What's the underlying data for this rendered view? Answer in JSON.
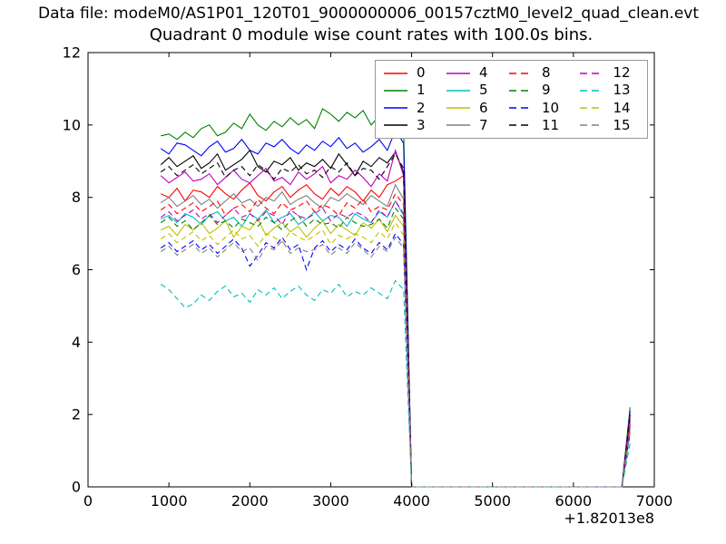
{
  "header": {
    "data_file": "Data file: modeM0/AS1P01_120T01_9000000006_00157cztM0_level2_quad_clean.evt"
  },
  "chart_data": {
    "type": "line",
    "title": "Quadrant 0 module wise count rates with 100.0s bins.",
    "xlabel": "",
    "ylabel": "",
    "xlim": [
      0,
      7000
    ],
    "ylim": [
      0,
      12
    ],
    "x_ticks": [
      0,
      1000,
      2000,
      3000,
      4000,
      5000,
      6000,
      7000
    ],
    "y_ticks": [
      0,
      2,
      4,
      6,
      8,
      10,
      12
    ],
    "x_offset_label": "+1.82013e8",
    "grid": false,
    "legend": {
      "position": "upper right inside",
      "columns": 4,
      "border_color": "#999999"
    },
    "bin_seconds": 100.0,
    "x_start": 900,
    "x_step": 100,
    "zero_from": 4000,
    "zero_to": 6600,
    "tail_x": 6700,
    "series": [
      {
        "name": "0",
        "color": "#ff0000",
        "dashed": false,
        "tail": 1.85,
        "values": [
          8.1,
          8.0,
          8.25,
          7.9,
          8.2,
          8.15,
          8.0,
          8.3,
          8.1,
          7.95,
          8.2,
          8.4,
          8.05,
          7.9,
          8.15,
          8.3,
          8.0,
          8.2,
          8.35,
          8.1,
          7.95,
          8.25,
          8.05,
          8.3,
          8.15,
          7.9,
          8.2,
          8.0,
          8.35,
          8.45,
          8.6
        ]
      },
      {
        "name": "1",
        "color": "#008000",
        "dashed": false,
        "tail": 2.2,
        "values": [
          9.7,
          9.75,
          9.6,
          9.8,
          9.65,
          9.9,
          10.0,
          9.7,
          9.8,
          10.05,
          9.9,
          10.3,
          10.0,
          9.85,
          10.1,
          9.95,
          10.2,
          10.0,
          10.15,
          9.9,
          10.45,
          10.3,
          10.1,
          10.35,
          10.2,
          10.4,
          10.0,
          10.25,
          10.45,
          9.7,
          9.9
        ]
      },
      {
        "name": "2",
        "color": "#0000ff",
        "dashed": false,
        "tail": 2.1,
        "values": [
          9.35,
          9.2,
          9.5,
          9.45,
          9.3,
          9.15,
          9.4,
          9.55,
          9.25,
          9.35,
          9.6,
          9.3,
          9.2,
          9.5,
          9.4,
          9.6,
          9.35,
          9.2,
          9.45,
          9.3,
          9.55,
          9.4,
          9.65,
          9.35,
          9.5,
          9.25,
          9.4,
          9.6,
          9.3,
          9.85,
          9.5
        ]
      },
      {
        "name": "3",
        "color": "#000000",
        "dashed": false,
        "tail": 2.0,
        "values": [
          8.9,
          9.1,
          8.85,
          9.0,
          9.15,
          8.8,
          8.95,
          9.2,
          8.75,
          8.9,
          9.05,
          9.3,
          8.85,
          8.7,
          9.0,
          8.9,
          9.1,
          8.75,
          8.95,
          8.85,
          9.05,
          8.8,
          9.2,
          8.9,
          8.6,
          9.0,
          8.85,
          9.1,
          8.95,
          9.25,
          8.7
        ]
      },
      {
        "name": "4",
        "color": "#bf00bf",
        "dashed": false,
        "tail": 1.95,
        "values": [
          8.6,
          8.4,
          8.55,
          8.7,
          8.45,
          8.5,
          8.65,
          8.35,
          8.55,
          8.75,
          8.5,
          8.4,
          8.6,
          8.8,
          8.45,
          8.55,
          8.35,
          8.7,
          8.5,
          8.65,
          8.85,
          8.4,
          8.6,
          8.5,
          8.75,
          8.55,
          8.3,
          8.65,
          8.45,
          9.3,
          8.6
        ]
      },
      {
        "name": "5",
        "color": "#00bfbf",
        "dashed": false,
        "tail": 1.7,
        "values": [
          7.4,
          7.5,
          7.3,
          7.55,
          7.45,
          7.25,
          7.5,
          7.6,
          7.35,
          7.45,
          7.2,
          7.55,
          7.4,
          7.65,
          7.3,
          7.45,
          7.55,
          7.25,
          7.4,
          7.6,
          7.35,
          7.5,
          7.45,
          7.2,
          7.55,
          7.4,
          7.3,
          7.6,
          7.45,
          7.9,
          7.5
        ]
      },
      {
        "name": "6",
        "color": "#bfbf00",
        "dashed": false,
        "tail": 1.6,
        "values": [
          7.1,
          7.2,
          6.95,
          7.25,
          7.1,
          7.3,
          7.0,
          7.15,
          7.35,
          6.9,
          7.2,
          7.1,
          7.4,
          6.95,
          7.15,
          7.3,
          7.05,
          7.2,
          6.9,
          7.15,
          7.35,
          7.0,
          7.25,
          7.1,
          6.95,
          7.3,
          7.15,
          7.4,
          7.05,
          7.5,
          7.2
        ]
      },
      {
        "name": "7",
        "color": "#808080",
        "dashed": false,
        "tail": 1.8,
        "values": [
          7.85,
          8.0,
          7.75,
          7.9,
          8.05,
          7.8,
          7.95,
          7.7,
          7.9,
          8.1,
          7.85,
          7.95,
          7.75,
          8.0,
          7.9,
          8.15,
          7.8,
          7.95,
          8.05,
          7.85,
          7.7,
          8.0,
          7.9,
          8.1,
          7.95,
          7.8,
          8.05,
          7.9,
          7.75,
          8.35,
          7.95
        ]
      },
      {
        "name": "8",
        "color": "#ff0000",
        "dashed": true,
        "tail": 1.75,
        "values": [
          7.65,
          7.8,
          7.55,
          7.7,
          7.85,
          7.6,
          7.75,
          7.9,
          7.5,
          7.7,
          7.8,
          7.6,
          7.95,
          7.7,
          7.55,
          7.85,
          7.65,
          7.75,
          7.9,
          7.6,
          7.8,
          7.7,
          7.5,
          7.85,
          7.7,
          7.95,
          7.6,
          7.75,
          7.65,
          8.1,
          7.8
        ]
      },
      {
        "name": "9",
        "color": "#008000",
        "dashed": true,
        "tail": 1.65,
        "values": [
          7.3,
          7.45,
          7.2,
          7.35,
          7.1,
          7.3,
          7.5,
          7.25,
          7.35,
          7.15,
          7.4,
          7.3,
          7.2,
          7.45,
          7.3,
          7.1,
          7.35,
          7.5,
          7.2,
          7.4,
          7.25,
          7.3,
          7.15,
          7.45,
          7.3,
          7.2,
          7.25,
          7.4,
          7.15,
          7.7,
          7.4
        ]
      },
      {
        "name": "10",
        "color": "#0000ff",
        "dashed": true,
        "tail": 1.5,
        "values": [
          6.6,
          6.75,
          6.5,
          6.65,
          6.8,
          6.55,
          6.7,
          6.45,
          6.65,
          6.85,
          6.6,
          6.1,
          6.4,
          6.75,
          6.6,
          6.9,
          6.55,
          6.7,
          6.0,
          6.6,
          6.8,
          6.5,
          6.7,
          6.55,
          6.85,
          6.6,
          6.45,
          6.75,
          6.55,
          7.0,
          6.7
        ]
      },
      {
        "name": "11",
        "color": "#000000",
        "dashed": true,
        "tail": 2.0,
        "values": [
          8.7,
          8.85,
          8.6,
          8.75,
          8.9,
          8.65,
          8.8,
          8.95,
          8.55,
          8.75,
          8.85,
          8.6,
          8.9,
          8.75,
          8.5,
          8.8,
          8.7,
          8.9,
          8.65,
          8.75,
          8.55,
          8.85,
          8.7,
          8.95,
          8.6,
          8.8,
          8.75,
          8.5,
          8.85,
          9.2,
          8.8
        ]
      },
      {
        "name": "12",
        "color": "#bf00bf",
        "dashed": true,
        "tail": 1.7,
        "values": [
          7.45,
          7.6,
          7.35,
          7.5,
          7.65,
          7.4,
          7.55,
          7.3,
          7.5,
          7.7,
          7.45,
          7.55,
          7.35,
          7.6,
          7.5,
          7.25,
          7.65,
          7.5,
          7.4,
          7.55,
          7.7,
          7.35,
          7.55,
          7.45,
          7.6,
          7.5,
          7.3,
          7.65,
          7.45,
          7.9,
          7.55
        ]
      },
      {
        "name": "13",
        "color": "#00bfbf",
        "dashed": true,
        "tail": 1.2,
        "values": [
          5.6,
          5.45,
          5.2,
          4.95,
          5.05,
          5.3,
          5.15,
          5.4,
          5.55,
          5.25,
          5.35,
          5.1,
          5.45,
          5.3,
          5.5,
          5.2,
          5.4,
          5.55,
          5.3,
          5.15,
          5.45,
          5.35,
          5.6,
          5.25,
          5.4,
          5.3,
          5.5,
          5.35,
          5.2,
          5.7,
          5.45
        ]
      },
      {
        "name": "14",
        "color": "#bfbf00",
        "dashed": true,
        "tail": 1.55,
        "values": [
          6.85,
          7.0,
          6.75,
          6.9,
          7.05,
          6.8,
          6.95,
          6.7,
          6.9,
          7.1,
          6.85,
          6.95,
          6.65,
          7.0,
          6.9,
          6.75,
          7.05,
          6.9,
          6.8,
          6.95,
          7.1,
          6.7,
          6.95,
          6.85,
          7.0,
          6.9,
          6.75,
          7.05,
          6.85,
          7.3,
          6.95
        ]
      },
      {
        "name": "15",
        "color": "#808080",
        "dashed": true,
        "tail": 1.5,
        "values": [
          6.5,
          6.65,
          6.4,
          6.55,
          6.7,
          6.45,
          6.6,
          6.35,
          6.55,
          6.75,
          6.5,
          6.6,
          6.25,
          6.65,
          6.55,
          6.8,
          6.45,
          6.6,
          6.5,
          6.55,
          6.7,
          6.4,
          6.6,
          6.45,
          6.75,
          6.55,
          6.35,
          6.65,
          6.5,
          6.9,
          6.6
        ]
      }
    ]
  }
}
